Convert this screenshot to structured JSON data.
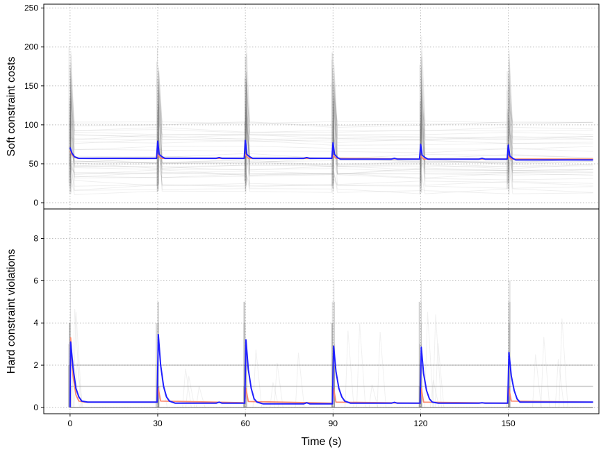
{
  "chart_data": {
    "type": "line",
    "x": {
      "label": "Time (s)",
      "ticks": [
        0,
        30,
        60,
        90,
        120,
        150
      ],
      "range": [
        -9,
        181
      ]
    },
    "grid": "dotted",
    "panels": [
      {
        "id": "soft",
        "ylabel": "Soft constraint costs",
        "ylim": [
          -8,
          255
        ],
        "yticks": [
          0,
          50,
          100,
          150,
          200,
          250
        ],
        "series": [
          {
            "color": "#1f1fff",
            "points": [
              [
                0,
                71
              ],
              [
                0.6,
                64
              ],
              [
                1.5,
                59
              ],
              [
                3,
                57
              ],
              [
                10,
                57
              ],
              [
                29.6,
                57
              ],
              [
                30.0,
                79
              ],
              [
                30.5,
                62
              ],
              [
                31.5,
                59
              ],
              [
                32.5,
                57
              ],
              [
                50,
                57
              ],
              [
                51,
                58
              ],
              [
                52,
                57
              ],
              [
                59.6,
                57
              ],
              [
                60.0,
                80
              ],
              [
                60.5,
                62
              ],
              [
                61.5,
                59
              ],
              [
                62.5,
                57
              ],
              [
                80,
                57
              ],
              [
                81,
                58
              ],
              [
                82,
                57
              ],
              [
                89.6,
                57
              ],
              [
                90.0,
                77
              ],
              [
                90.5,
                62
              ],
              [
                91.5,
                58
              ],
              [
                92.5,
                56
              ],
              [
                110,
                56
              ],
              [
                111,
                57
              ],
              [
                112,
                56
              ],
              [
                119.6,
                56
              ],
              [
                120.0,
                75
              ],
              [
                120.5,
                61
              ],
              [
                121.5,
                58
              ],
              [
                122.5,
                56
              ],
              [
                140,
                56
              ],
              [
                141,
                57
              ],
              [
                142,
                56
              ],
              [
                149.6,
                56
              ],
              [
                150.0,
                74
              ],
              [
                150.5,
                60
              ],
              [
                151.5,
                57
              ],
              [
                152.5,
                55
              ],
              [
                179,
                55
              ]
            ]
          },
          {
            "color": "#fa8a6e",
            "points": [
              [
                0,
                66
              ],
              [
                1,
                60
              ],
              [
                2.5,
                57
              ],
              [
                29.6,
                57
              ],
              [
                30,
                62
              ],
              [
                31,
                57
              ],
              [
                59.6,
                57
              ],
              [
                60,
                62
              ],
              [
                61,
                57
              ],
              [
                89.6,
                57
              ],
              [
                90,
                61
              ],
              [
                91,
                57
              ],
              [
                119.6,
                56
              ],
              [
                120,
                60
              ],
              [
                121,
                56
              ],
              [
                149.6,
                56
              ],
              [
                150,
                60
              ],
              [
                151,
                56
              ],
              [
                179,
                56
              ]
            ]
          }
        ]
      },
      {
        "id": "hard",
        "ylabel": "Hard constraint violations",
        "ylim": [
          -0.3,
          9.4
        ],
        "yticks": [
          0,
          2,
          4,
          6,
          8
        ],
        "series": [
          {
            "color": "#1f1fff",
            "points": [
              [
                0,
                0
              ],
              [
                0.2,
                3.1
              ],
              [
                1,
                1.9
              ],
              [
                2,
                0.9
              ],
              [
                3,
                0.5
              ],
              [
                4,
                0.3
              ],
              [
                6,
                0.25
              ],
              [
                29.8,
                0.25
              ],
              [
                30.2,
                3.45
              ],
              [
                31,
                2.0
              ],
              [
                32,
                1.0
              ],
              [
                33,
                0.5
              ],
              [
                34,
                0.3
              ],
              [
                36,
                0.2
              ],
              [
                50,
                0.2
              ],
              [
                51,
                0.25
              ],
              [
                52,
                0.2
              ],
              [
                59.8,
                0.2
              ],
              [
                60.2,
                3.2
              ],
              [
                61,
                1.8
              ],
              [
                62,
                0.9
              ],
              [
                63,
                0.4
              ],
              [
                64,
                0.25
              ],
              [
                66,
                0.17
              ],
              [
                80,
                0.17
              ],
              [
                81,
                0.22
              ],
              [
                82,
                0.17
              ],
              [
                89.8,
                0.17
              ],
              [
                90.2,
                2.9
              ],
              [
                91,
                1.7
              ],
              [
                92,
                0.9
              ],
              [
                93,
                0.5
              ],
              [
                94,
                0.3
              ],
              [
                96,
                0.2
              ],
              [
                110,
                0.2
              ],
              [
                111,
                0.24
              ],
              [
                112,
                0.2
              ],
              [
                119.8,
                0.2
              ],
              [
                120.2,
                2.85
              ],
              [
                121,
                1.6
              ],
              [
                122,
                0.8
              ],
              [
                123,
                0.4
              ],
              [
                124,
                0.25
              ],
              [
                126,
                0.2
              ],
              [
                140,
                0.2
              ],
              [
                141,
                0.22
              ],
              [
                142,
                0.2
              ],
              [
                149.8,
                0.2
              ],
              [
                150.2,
                2.6
              ],
              [
                151,
                1.5
              ],
              [
                152,
                0.8
              ],
              [
                153,
                0.4
              ],
              [
                154,
                0.25
              ],
              [
                156,
                0.25
              ],
              [
                179,
                0.25
              ]
            ]
          },
          {
            "color": "#fa8a6e",
            "points": [
              [
                0,
                0
              ],
              [
                0.2,
                3.3
              ],
              [
                1,
                1.5
              ],
              [
                2,
                0.6
              ],
              [
                3,
                0.3
              ],
              [
                5,
                0.25
              ],
              [
                29.8,
                0.25
              ],
              [
                30.2,
                0.9
              ],
              [
                31,
                0.3
              ],
              [
                59.8,
                0.22
              ],
              [
                60.2,
                0.9
              ],
              [
                61,
                0.28
              ],
              [
                89.8,
                0.2
              ],
              [
                90.2,
                0.9
              ],
              [
                91,
                0.25
              ],
              [
                119.8,
                0.2
              ],
              [
                120.2,
                0.9
              ],
              [
                121,
                0.25
              ],
              [
                149.8,
                0.2
              ],
              [
                150.2,
                0.9
              ],
              [
                151,
                0.3
              ],
              [
                179,
                0.25
              ]
            ]
          }
        ]
      }
    ]
  }
}
